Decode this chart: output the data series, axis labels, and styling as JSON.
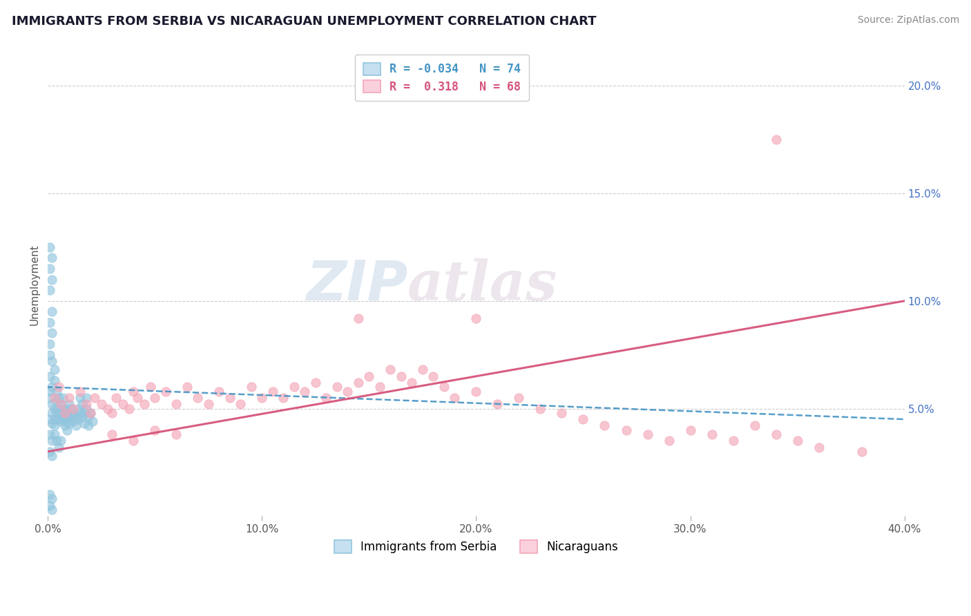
{
  "title": "IMMIGRANTS FROM SERBIA VS NICARAGUAN UNEMPLOYMENT CORRELATION CHART",
  "source": "Source: ZipAtlas.com",
  "ylabel": "Unemployment",
  "watermark_zip": "ZIP",
  "watermark_atlas": "atlas",
  "serbia_R": -0.034,
  "nicaragua_R": 0.318,
  "xlim": [
    0.0,
    0.4
  ],
  "ylim": [
    0.0,
    0.215
  ],
  "x_ticks": [
    0.0,
    0.1,
    0.2,
    0.3,
    0.4
  ],
  "x_tick_labels": [
    "0.0%",
    "10.0%",
    "20.0%",
    "30.0%",
    "40.0%"
  ],
  "y_ticks": [
    0.05,
    0.1,
    0.15,
    0.2
  ],
  "y_tick_labels": [
    "5.0%",
    "10.0%",
    "15.0%",
    "20.0%"
  ],
  "serbia_color": "#92c5de",
  "nicaragua_color": "#f4a6b8",
  "serbia_line_color": "#4393c3",
  "nicaragua_line_color": "#d6537a",
  "background_color": "#ffffff",
  "grid_color": "#cccccc",
  "serbia_scatter": [
    [
      0.001,
      0.125
    ],
    [
      0.001,
      0.115
    ],
    [
      0.001,
      0.105
    ],
    [
      0.002,
      0.12
    ],
    [
      0.002,
      0.11
    ],
    [
      0.002,
      0.095
    ],
    [
      0.001,
      0.09
    ],
    [
      0.002,
      0.085
    ],
    [
      0.001,
      0.08
    ],
    [
      0.001,
      0.075
    ],
    [
      0.002,
      0.072
    ],
    [
      0.001,
      0.065
    ],
    [
      0.002,
      0.06
    ],
    [
      0.001,
      0.058
    ],
    [
      0.003,
      0.068
    ],
    [
      0.003,
      0.063
    ],
    [
      0.001,
      0.055
    ],
    [
      0.002,
      0.052
    ],
    [
      0.003,
      0.05
    ],
    [
      0.002,
      0.048
    ],
    [
      0.003,
      0.045
    ],
    [
      0.001,
      0.045
    ],
    [
      0.002,
      0.043
    ],
    [
      0.003,
      0.042
    ],
    [
      0.004,
      0.058
    ],
    [
      0.004,
      0.053
    ],
    [
      0.004,
      0.048
    ],
    [
      0.005,
      0.055
    ],
    [
      0.005,
      0.05
    ],
    [
      0.005,
      0.045
    ],
    [
      0.006,
      0.052
    ],
    [
      0.006,
      0.048
    ],
    [
      0.006,
      0.044
    ],
    [
      0.007,
      0.055
    ],
    [
      0.007,
      0.05
    ],
    [
      0.007,
      0.045
    ],
    [
      0.008,
      0.05
    ],
    [
      0.008,
      0.046
    ],
    [
      0.008,
      0.042
    ],
    [
      0.009,
      0.048
    ],
    [
      0.009,
      0.044
    ],
    [
      0.009,
      0.04
    ],
    [
      0.01,
      0.052
    ],
    [
      0.01,
      0.047
    ],
    [
      0.01,
      0.043
    ],
    [
      0.011,
      0.05
    ],
    [
      0.011,
      0.046
    ],
    [
      0.012,
      0.048
    ],
    [
      0.012,
      0.044
    ],
    [
      0.013,
      0.046
    ],
    [
      0.013,
      0.042
    ],
    [
      0.014,
      0.05
    ],
    [
      0.014,
      0.045
    ],
    [
      0.015,
      0.055
    ],
    [
      0.015,
      0.048
    ],
    [
      0.016,
      0.052
    ],
    [
      0.016,
      0.046
    ],
    [
      0.017,
      0.048
    ],
    [
      0.017,
      0.043
    ],
    [
      0.018,
      0.055
    ],
    [
      0.018,
      0.05
    ],
    [
      0.019,
      0.046
    ],
    [
      0.019,
      0.042
    ],
    [
      0.02,
      0.048
    ],
    [
      0.021,
      0.044
    ],
    [
      0.001,
      0.038
    ],
    [
      0.002,
      0.035
    ],
    [
      0.003,
      0.038
    ],
    [
      0.004,
      0.035
    ],
    [
      0.005,
      0.032
    ],
    [
      0.006,
      0.035
    ],
    [
      0.001,
      0.03
    ],
    [
      0.002,
      0.028
    ],
    [
      0.001,
      0.01
    ],
    [
      0.002,
      0.008
    ],
    [
      0.001,
      0.005
    ],
    [
      0.002,
      0.003
    ]
  ],
  "nicaragua_scatter": [
    [
      0.003,
      0.055
    ],
    [
      0.005,
      0.06
    ],
    [
      0.006,
      0.052
    ],
    [
      0.008,
      0.048
    ],
    [
      0.01,
      0.055
    ],
    [
      0.012,
      0.05
    ],
    [
      0.015,
      0.058
    ],
    [
      0.018,
      0.052
    ],
    [
      0.02,
      0.048
    ],
    [
      0.022,
      0.055
    ],
    [
      0.025,
      0.052
    ],
    [
      0.028,
      0.05
    ],
    [
      0.03,
      0.048
    ],
    [
      0.032,
      0.055
    ],
    [
      0.035,
      0.052
    ],
    [
      0.038,
      0.05
    ],
    [
      0.04,
      0.058
    ],
    [
      0.042,
      0.055
    ],
    [
      0.045,
      0.052
    ],
    [
      0.048,
      0.06
    ],
    [
      0.05,
      0.055
    ],
    [
      0.055,
      0.058
    ],
    [
      0.06,
      0.052
    ],
    [
      0.065,
      0.06
    ],
    [
      0.07,
      0.055
    ],
    [
      0.075,
      0.052
    ],
    [
      0.08,
      0.058
    ],
    [
      0.085,
      0.055
    ],
    [
      0.09,
      0.052
    ],
    [
      0.095,
      0.06
    ],
    [
      0.1,
      0.055
    ],
    [
      0.105,
      0.058
    ],
    [
      0.11,
      0.055
    ],
    [
      0.115,
      0.06
    ],
    [
      0.12,
      0.058
    ],
    [
      0.125,
      0.062
    ],
    [
      0.13,
      0.055
    ],
    [
      0.135,
      0.06
    ],
    [
      0.14,
      0.058
    ],
    [
      0.145,
      0.062
    ],
    [
      0.15,
      0.065
    ],
    [
      0.155,
      0.06
    ],
    [
      0.16,
      0.068
    ],
    [
      0.165,
      0.065
    ],
    [
      0.17,
      0.062
    ],
    [
      0.175,
      0.068
    ],
    [
      0.18,
      0.065
    ],
    [
      0.185,
      0.06
    ],
    [
      0.19,
      0.055
    ],
    [
      0.2,
      0.058
    ],
    [
      0.21,
      0.052
    ],
    [
      0.22,
      0.055
    ],
    [
      0.23,
      0.05
    ],
    [
      0.24,
      0.048
    ],
    [
      0.25,
      0.045
    ],
    [
      0.26,
      0.042
    ],
    [
      0.27,
      0.04
    ],
    [
      0.28,
      0.038
    ],
    [
      0.29,
      0.035
    ],
    [
      0.3,
      0.04
    ],
    [
      0.31,
      0.038
    ],
    [
      0.32,
      0.035
    ],
    [
      0.33,
      0.042
    ],
    [
      0.34,
      0.038
    ],
    [
      0.35,
      0.035
    ],
    [
      0.36,
      0.032
    ],
    [
      0.38,
      0.03
    ],
    [
      0.34,
      0.175
    ],
    [
      0.145,
      0.092
    ],
    [
      0.2,
      0.092
    ],
    [
      0.03,
      0.038
    ],
    [
      0.04,
      0.035
    ],
    [
      0.05,
      0.04
    ],
    [
      0.06,
      0.038
    ]
  ]
}
